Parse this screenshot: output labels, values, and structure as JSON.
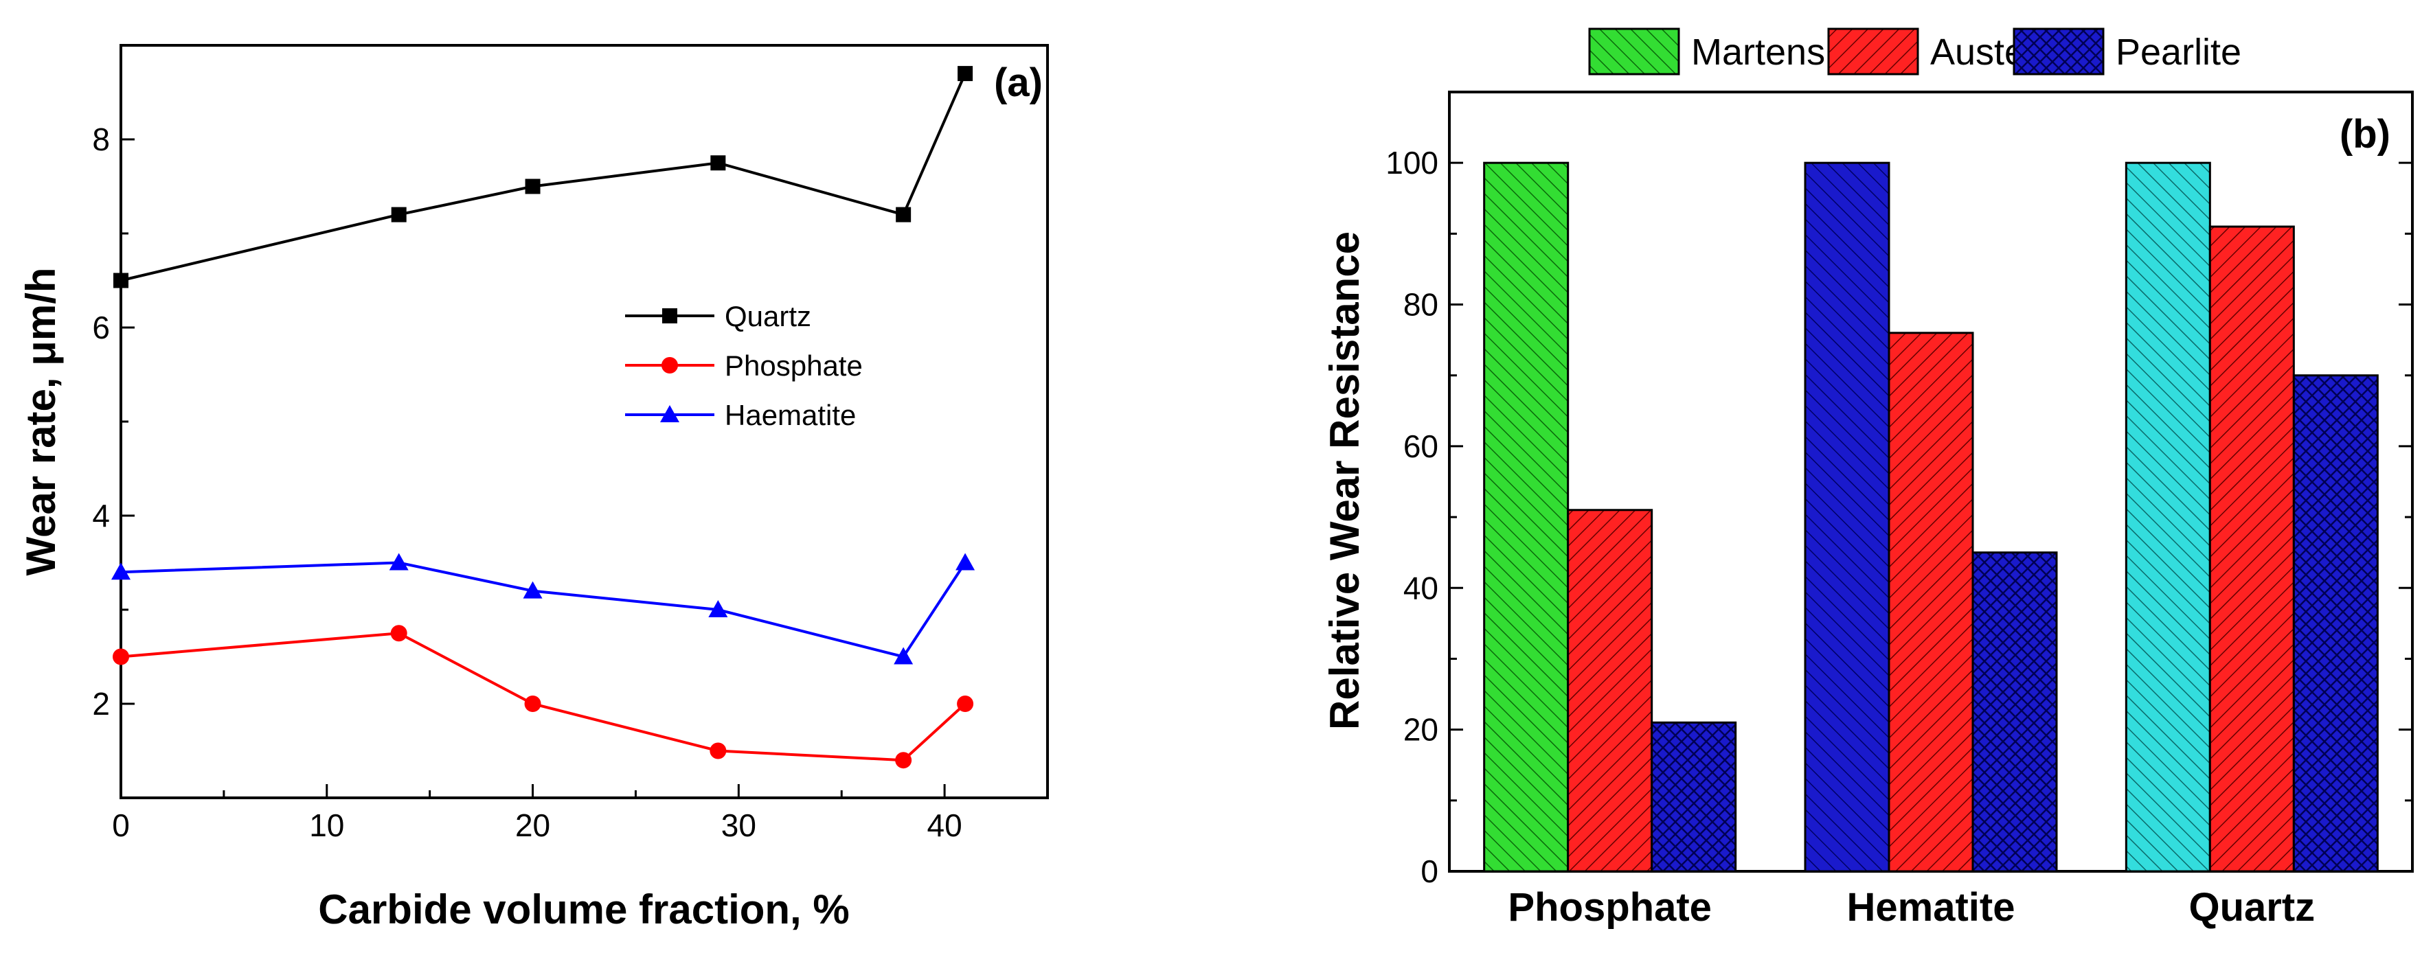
{
  "chart_data": [
    {
      "type": "line",
      "panel_label": "(a)",
      "xlabel": "Carbide volume fraction, %",
      "ylabel": "Wear rate, μm/h",
      "xlim": [
        0,
        45
      ],
      "ylim": [
        1,
        9
      ],
      "xticks": [
        "0",
        "10",
        "20",
        "30",
        "40"
      ],
      "yticks": [
        "2",
        "4",
        "6",
        "8"
      ],
      "legend_position": "center-right",
      "x": [
        0,
        13.5,
        20,
        29,
        38,
        41
      ],
      "series": [
        {
          "name": "Quartz",
          "marker": "square",
          "color": "#000000",
          "values": [
            6.5,
            7.2,
            7.5,
            7.75,
            7.2,
            8.7
          ]
        },
        {
          "name": "Phosphate",
          "marker": "circle",
          "color": "#ff0000",
          "values": [
            2.5,
            2.75,
            2.0,
            1.5,
            1.4,
            2.0
          ]
        },
        {
          "name": "Haematite",
          "marker": "triangle",
          "color": "#0000ff",
          "values": [
            3.4,
            3.5,
            3.2,
            3.0,
            2.5,
            3.5
          ]
        }
      ]
    },
    {
      "type": "bar",
      "panel_label": "(b)",
      "xlabel": "",
      "ylabel": "Relative Wear Resistance",
      "ylim": [
        0,
        110
      ],
      "yticks": [
        "0",
        "20",
        "40",
        "60",
        "80",
        "100"
      ],
      "categories": [
        "Phosphate",
        "Hematite",
        "Quartz"
      ],
      "legend_position": "top",
      "series": [
        {
          "name": "Martensite",
          "values": [
            100,
            100,
            100
          ]
        },
        {
          "name": "Austenite",
          "values": [
            51,
            76,
            91
          ]
        },
        {
          "name": "Pearlite",
          "values": [
            21,
            45,
            70
          ]
        }
      ],
      "legend_colors": [
        "#33dd33",
        "#ff2222",
        "#1a1acc"
      ],
      "first_bar_colors": [
        "#33dd33",
        "#1a1acc",
        "#33dddd"
      ]
    }
  ]
}
